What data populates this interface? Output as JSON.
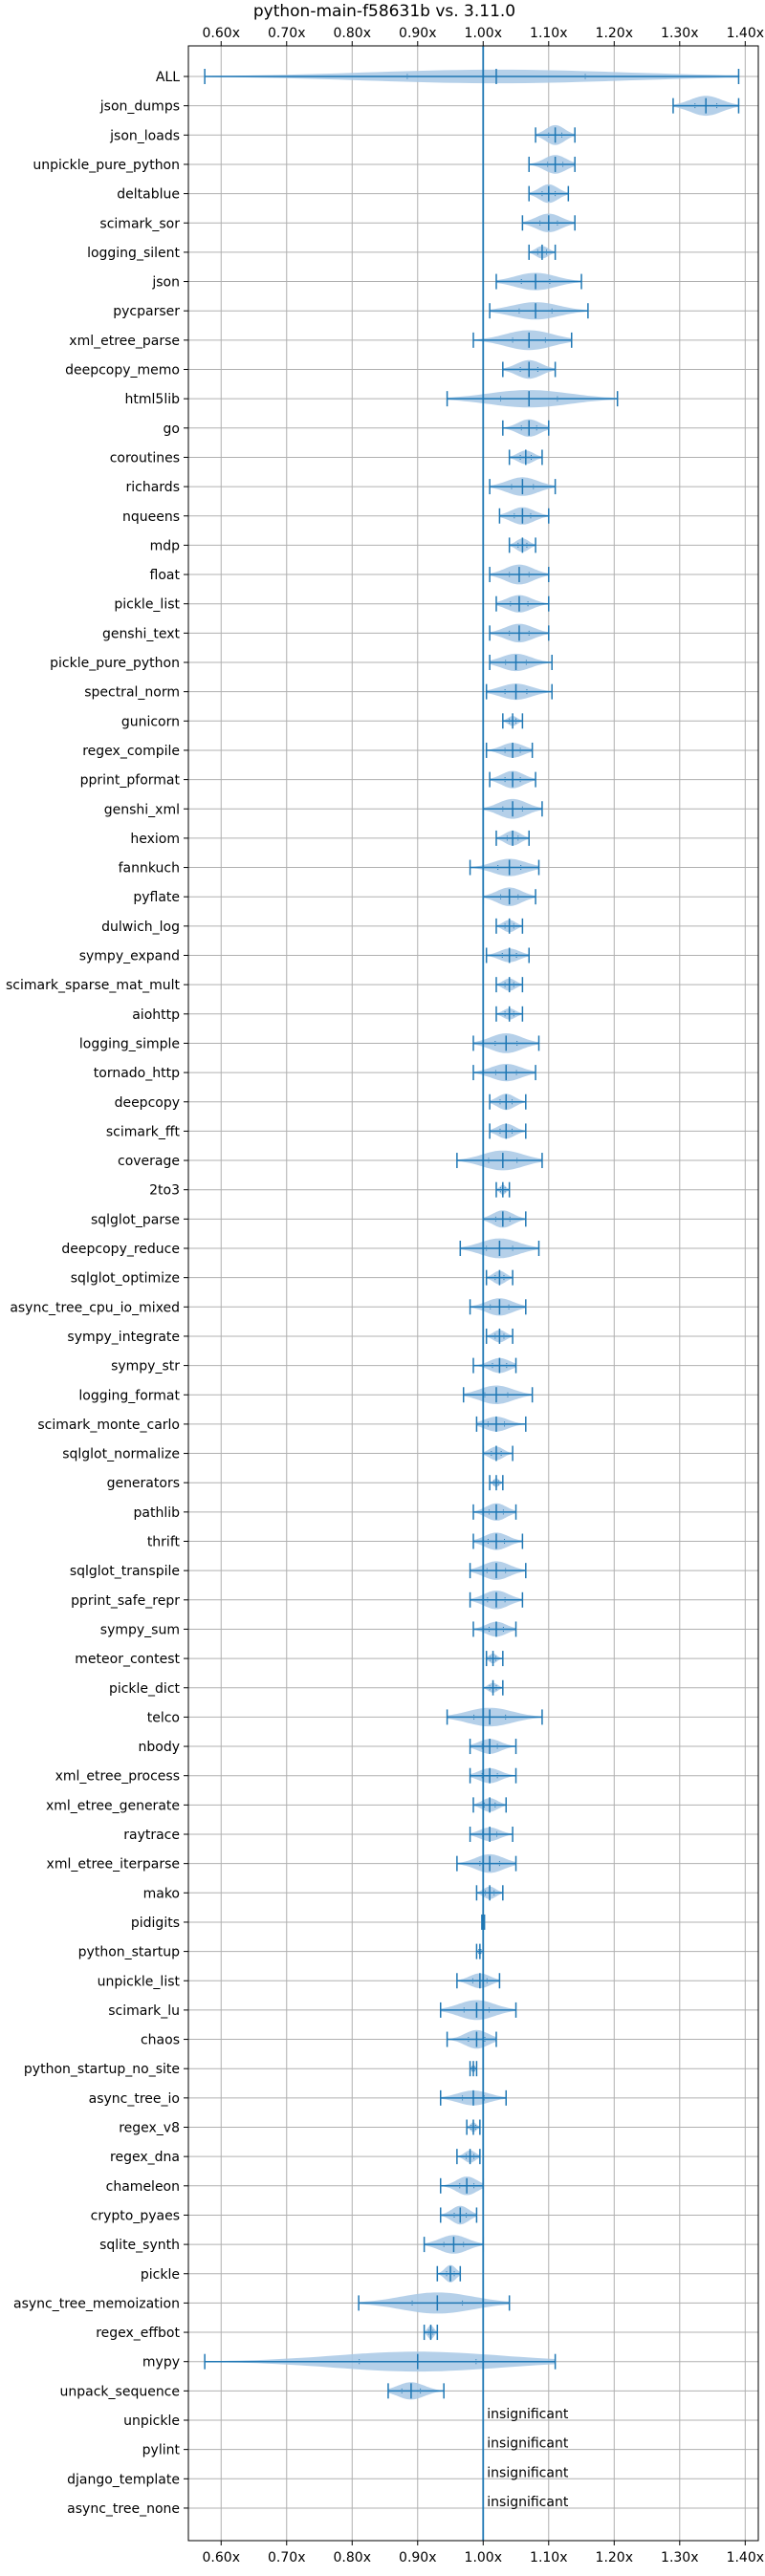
{
  "chart_data": {
    "type": "violin",
    "title": "python-main-f58631b vs. 3.11.0",
    "xlabel": "",
    "ylabel": "",
    "xlim": [
      0.55,
      1.42
    ],
    "xticks": [
      0.6,
      0.7,
      0.8,
      0.9,
      1.0,
      1.1,
      1.2,
      1.3,
      1.4
    ],
    "xtick_labels": [
      "0.60x",
      "0.70x",
      "0.80x",
      "0.90x",
      "1.00x",
      "1.10x",
      "1.20x",
      "1.30x",
      "1.40x"
    ],
    "reference_line": 1.0,
    "grid": true,
    "colors": {
      "line": "#1f77b4",
      "fill": "#a8c8e5"
    },
    "insignificant_label": "insignificant",
    "categories": [
      "ALL",
      "json_dumps",
      "json_loads",
      "unpickle_pure_python",
      "deltablue",
      "scimark_sor",
      "logging_silent",
      "json",
      "pycparser",
      "xml_etree_parse",
      "deepcopy_memo",
      "html5lib",
      "go",
      "coroutines",
      "richards",
      "nqueens",
      "mdp",
      "float",
      "pickle_list",
      "genshi_text",
      "pickle_pure_python",
      "spectral_norm",
      "gunicorn",
      "regex_compile",
      "pprint_pformat",
      "genshi_xml",
      "hexiom",
      "fannkuch",
      "pyflate",
      "dulwich_log",
      "sympy_expand",
      "scimark_sparse_mat_mult",
      "aiohttp",
      "logging_simple",
      "tornado_http",
      "deepcopy",
      "scimark_fft",
      "coverage",
      "2to3",
      "sqlglot_parse",
      "deepcopy_reduce",
      "sqlglot_optimize",
      "async_tree_cpu_io_mixed",
      "sympy_integrate",
      "sympy_str",
      "logging_format",
      "scimark_monte_carlo",
      "sqlglot_normalize",
      "generators",
      "pathlib",
      "thrift",
      "sqlglot_transpile",
      "pprint_safe_repr",
      "sympy_sum",
      "meteor_contest",
      "pickle_dict",
      "telco",
      "nbody",
      "xml_etree_process",
      "xml_etree_generate",
      "raytrace",
      "xml_etree_iterparse",
      "mako",
      "pidigits",
      "python_startup",
      "unpickle_list",
      "scimark_lu",
      "chaos",
      "python_startup_no_site",
      "async_tree_io",
      "regex_v8",
      "regex_dna",
      "chameleon",
      "crypto_pyaes",
      "sqlite_synth",
      "pickle",
      "async_tree_memoization",
      "regex_effbot",
      "mypy",
      "unpack_sequence",
      "unpickle",
      "pylint",
      "django_template",
      "async_tree_none"
    ],
    "series": [
      {
        "center": 1.02,
        "min": 0.575,
        "max": 1.39,
        "width": 0.55
      },
      {
        "center": 1.34,
        "min": 1.29,
        "max": 1.39,
        "width": 0.8
      },
      {
        "center": 1.11,
        "min": 1.08,
        "max": 1.14,
        "width": 0.8
      },
      {
        "center": 1.11,
        "min": 1.07,
        "max": 1.14,
        "width": 0.75
      },
      {
        "center": 1.1,
        "min": 1.07,
        "max": 1.13,
        "width": 0.75
      },
      {
        "center": 1.1,
        "min": 1.06,
        "max": 1.14,
        "width": 0.75
      },
      {
        "center": 1.09,
        "min": 1.07,
        "max": 1.11,
        "width": 0.5
      },
      {
        "center": 1.08,
        "min": 1.02,
        "max": 1.15,
        "width": 0.7
      },
      {
        "center": 1.08,
        "min": 1.01,
        "max": 1.16,
        "width": 0.7
      },
      {
        "center": 1.07,
        "min": 0.985,
        "max": 1.135,
        "width": 0.8
      },
      {
        "center": 1.07,
        "min": 1.03,
        "max": 1.11,
        "width": 0.75
      },
      {
        "center": 1.07,
        "min": 0.945,
        "max": 1.205,
        "width": 0.7
      },
      {
        "center": 1.07,
        "min": 1.03,
        "max": 1.1,
        "width": 0.7
      },
      {
        "center": 1.065,
        "min": 1.04,
        "max": 1.09,
        "width": 0.55
      },
      {
        "center": 1.06,
        "min": 1.01,
        "max": 1.11,
        "width": 0.75
      },
      {
        "center": 1.06,
        "min": 1.025,
        "max": 1.1,
        "width": 0.7
      },
      {
        "center": 1.06,
        "min": 1.04,
        "max": 1.08,
        "width": 0.55
      },
      {
        "center": 1.055,
        "min": 1.01,
        "max": 1.1,
        "width": 0.8
      },
      {
        "center": 1.055,
        "min": 1.02,
        "max": 1.1,
        "width": 0.7
      },
      {
        "center": 1.055,
        "min": 1.01,
        "max": 1.1,
        "width": 0.75
      },
      {
        "center": 1.05,
        "min": 1.01,
        "max": 1.105,
        "width": 0.7
      },
      {
        "center": 1.05,
        "min": 1.005,
        "max": 1.105,
        "width": 0.65
      },
      {
        "center": 1.045,
        "min": 1.03,
        "max": 1.06,
        "width": 0.4
      },
      {
        "center": 1.045,
        "min": 1.005,
        "max": 1.075,
        "width": 0.6
      },
      {
        "center": 1.045,
        "min": 1.01,
        "max": 1.08,
        "width": 0.7
      },
      {
        "center": 1.045,
        "min": 1.0,
        "max": 1.09,
        "width": 0.8
      },
      {
        "center": 1.045,
        "min": 1.02,
        "max": 1.07,
        "width": 0.6
      },
      {
        "center": 1.04,
        "min": 0.98,
        "max": 1.085,
        "width": 0.7
      },
      {
        "center": 1.04,
        "min": 1.0,
        "max": 1.08,
        "width": 0.75
      },
      {
        "center": 1.04,
        "min": 1.02,
        "max": 1.06,
        "width": 0.5
      },
      {
        "center": 1.04,
        "min": 1.005,
        "max": 1.07,
        "width": 0.55
      },
      {
        "center": 1.04,
        "min": 1.02,
        "max": 1.06,
        "width": 0.5
      },
      {
        "center": 1.04,
        "min": 1.02,
        "max": 1.06,
        "width": 0.45
      },
      {
        "center": 1.035,
        "min": 0.985,
        "max": 1.085,
        "width": 0.8
      },
      {
        "center": 1.035,
        "min": 0.985,
        "max": 1.08,
        "width": 0.7
      },
      {
        "center": 1.035,
        "min": 1.01,
        "max": 1.065,
        "width": 0.65
      },
      {
        "center": 1.035,
        "min": 1.01,
        "max": 1.065,
        "width": 0.6
      },
      {
        "center": 1.03,
        "min": 0.96,
        "max": 1.09,
        "width": 0.8
      },
      {
        "center": 1.03,
        "min": 1.02,
        "max": 1.04,
        "width": 0.4
      },
      {
        "center": 1.03,
        "min": 1.0,
        "max": 1.065,
        "width": 0.7
      },
      {
        "center": 1.025,
        "min": 0.965,
        "max": 1.085,
        "width": 0.8
      },
      {
        "center": 1.025,
        "min": 1.005,
        "max": 1.045,
        "width": 0.55
      },
      {
        "center": 1.025,
        "min": 0.98,
        "max": 1.065,
        "width": 0.7
      },
      {
        "center": 1.025,
        "min": 1.005,
        "max": 1.045,
        "width": 0.5
      },
      {
        "center": 1.025,
        "min": 0.985,
        "max": 1.05,
        "width": 0.6
      },
      {
        "center": 1.02,
        "min": 0.97,
        "max": 1.075,
        "width": 0.75
      },
      {
        "center": 1.02,
        "min": 0.99,
        "max": 1.065,
        "width": 0.6
      },
      {
        "center": 1.02,
        "min": 1.0,
        "max": 1.045,
        "width": 0.55
      },
      {
        "center": 1.02,
        "min": 1.01,
        "max": 1.03,
        "width": 0.35
      },
      {
        "center": 1.02,
        "min": 0.985,
        "max": 1.05,
        "width": 0.7
      },
      {
        "center": 1.02,
        "min": 0.985,
        "max": 1.06,
        "width": 0.7
      },
      {
        "center": 1.02,
        "min": 0.98,
        "max": 1.065,
        "width": 0.75
      },
      {
        "center": 1.02,
        "min": 0.98,
        "max": 1.06,
        "width": 0.75
      },
      {
        "center": 1.02,
        "min": 0.985,
        "max": 1.05,
        "width": 0.6
      },
      {
        "center": 1.015,
        "min": 1.005,
        "max": 1.03,
        "width": 0.4
      },
      {
        "center": 1.015,
        "min": 1.0,
        "max": 1.03,
        "width": 0.4
      },
      {
        "center": 1.01,
        "min": 0.945,
        "max": 1.09,
        "width": 0.75
      },
      {
        "center": 1.01,
        "min": 0.98,
        "max": 1.05,
        "width": 0.6
      },
      {
        "center": 1.01,
        "min": 0.98,
        "max": 1.05,
        "width": 0.6
      },
      {
        "center": 1.01,
        "min": 0.985,
        "max": 1.035,
        "width": 0.55
      },
      {
        "center": 1.01,
        "min": 0.98,
        "max": 1.045,
        "width": 0.55
      },
      {
        "center": 1.01,
        "min": 0.96,
        "max": 1.05,
        "width": 0.75
      },
      {
        "center": 1.01,
        "min": 0.99,
        "max": 1.03,
        "width": 0.5
      },
      {
        "center": 1.0,
        "min": 0.998,
        "max": 1.002,
        "width": 0.15
      },
      {
        "center": 0.995,
        "min": 0.99,
        "max": 1.0,
        "width": 0.2
      },
      {
        "center": 0.995,
        "min": 0.96,
        "max": 1.025,
        "width": 0.6
      },
      {
        "center": 0.99,
        "min": 0.935,
        "max": 1.05,
        "width": 0.8
      },
      {
        "center": 0.99,
        "min": 0.945,
        "max": 1.02,
        "width": 0.75
      },
      {
        "center": 0.985,
        "min": 0.98,
        "max": 0.99,
        "width": 0.35
      },
      {
        "center": 0.985,
        "min": 0.935,
        "max": 1.035,
        "width": 0.6
      },
      {
        "center": 0.985,
        "min": 0.975,
        "max": 0.995,
        "width": 0.4
      },
      {
        "center": 0.98,
        "min": 0.96,
        "max": 0.995,
        "width": 0.5
      },
      {
        "center": 0.975,
        "min": 0.935,
        "max": 1.0,
        "width": 0.75
      },
      {
        "center": 0.965,
        "min": 0.935,
        "max": 0.99,
        "width": 0.75
      },
      {
        "center": 0.955,
        "min": 0.91,
        "max": 1.0,
        "width": 0.75
      },
      {
        "center": 0.95,
        "min": 0.93,
        "max": 0.965,
        "width": 0.7
      },
      {
        "center": 0.93,
        "min": 0.81,
        "max": 1.04,
        "width": 0.85
      },
      {
        "center": 0.92,
        "min": 0.91,
        "max": 0.93,
        "width": 0.55
      },
      {
        "center": 0.9,
        "min": 0.575,
        "max": 1.11,
        "width": 0.8
      },
      {
        "center": 0.89,
        "min": 0.855,
        "max": 0.94,
        "width": 0.7
      },
      {
        "center": 1.0,
        "insignificant": true
      },
      {
        "center": 1.0,
        "insignificant": true
      },
      {
        "center": 1.0,
        "insignificant": true
      },
      {
        "center": 1.0,
        "insignificant": true
      }
    ]
  }
}
